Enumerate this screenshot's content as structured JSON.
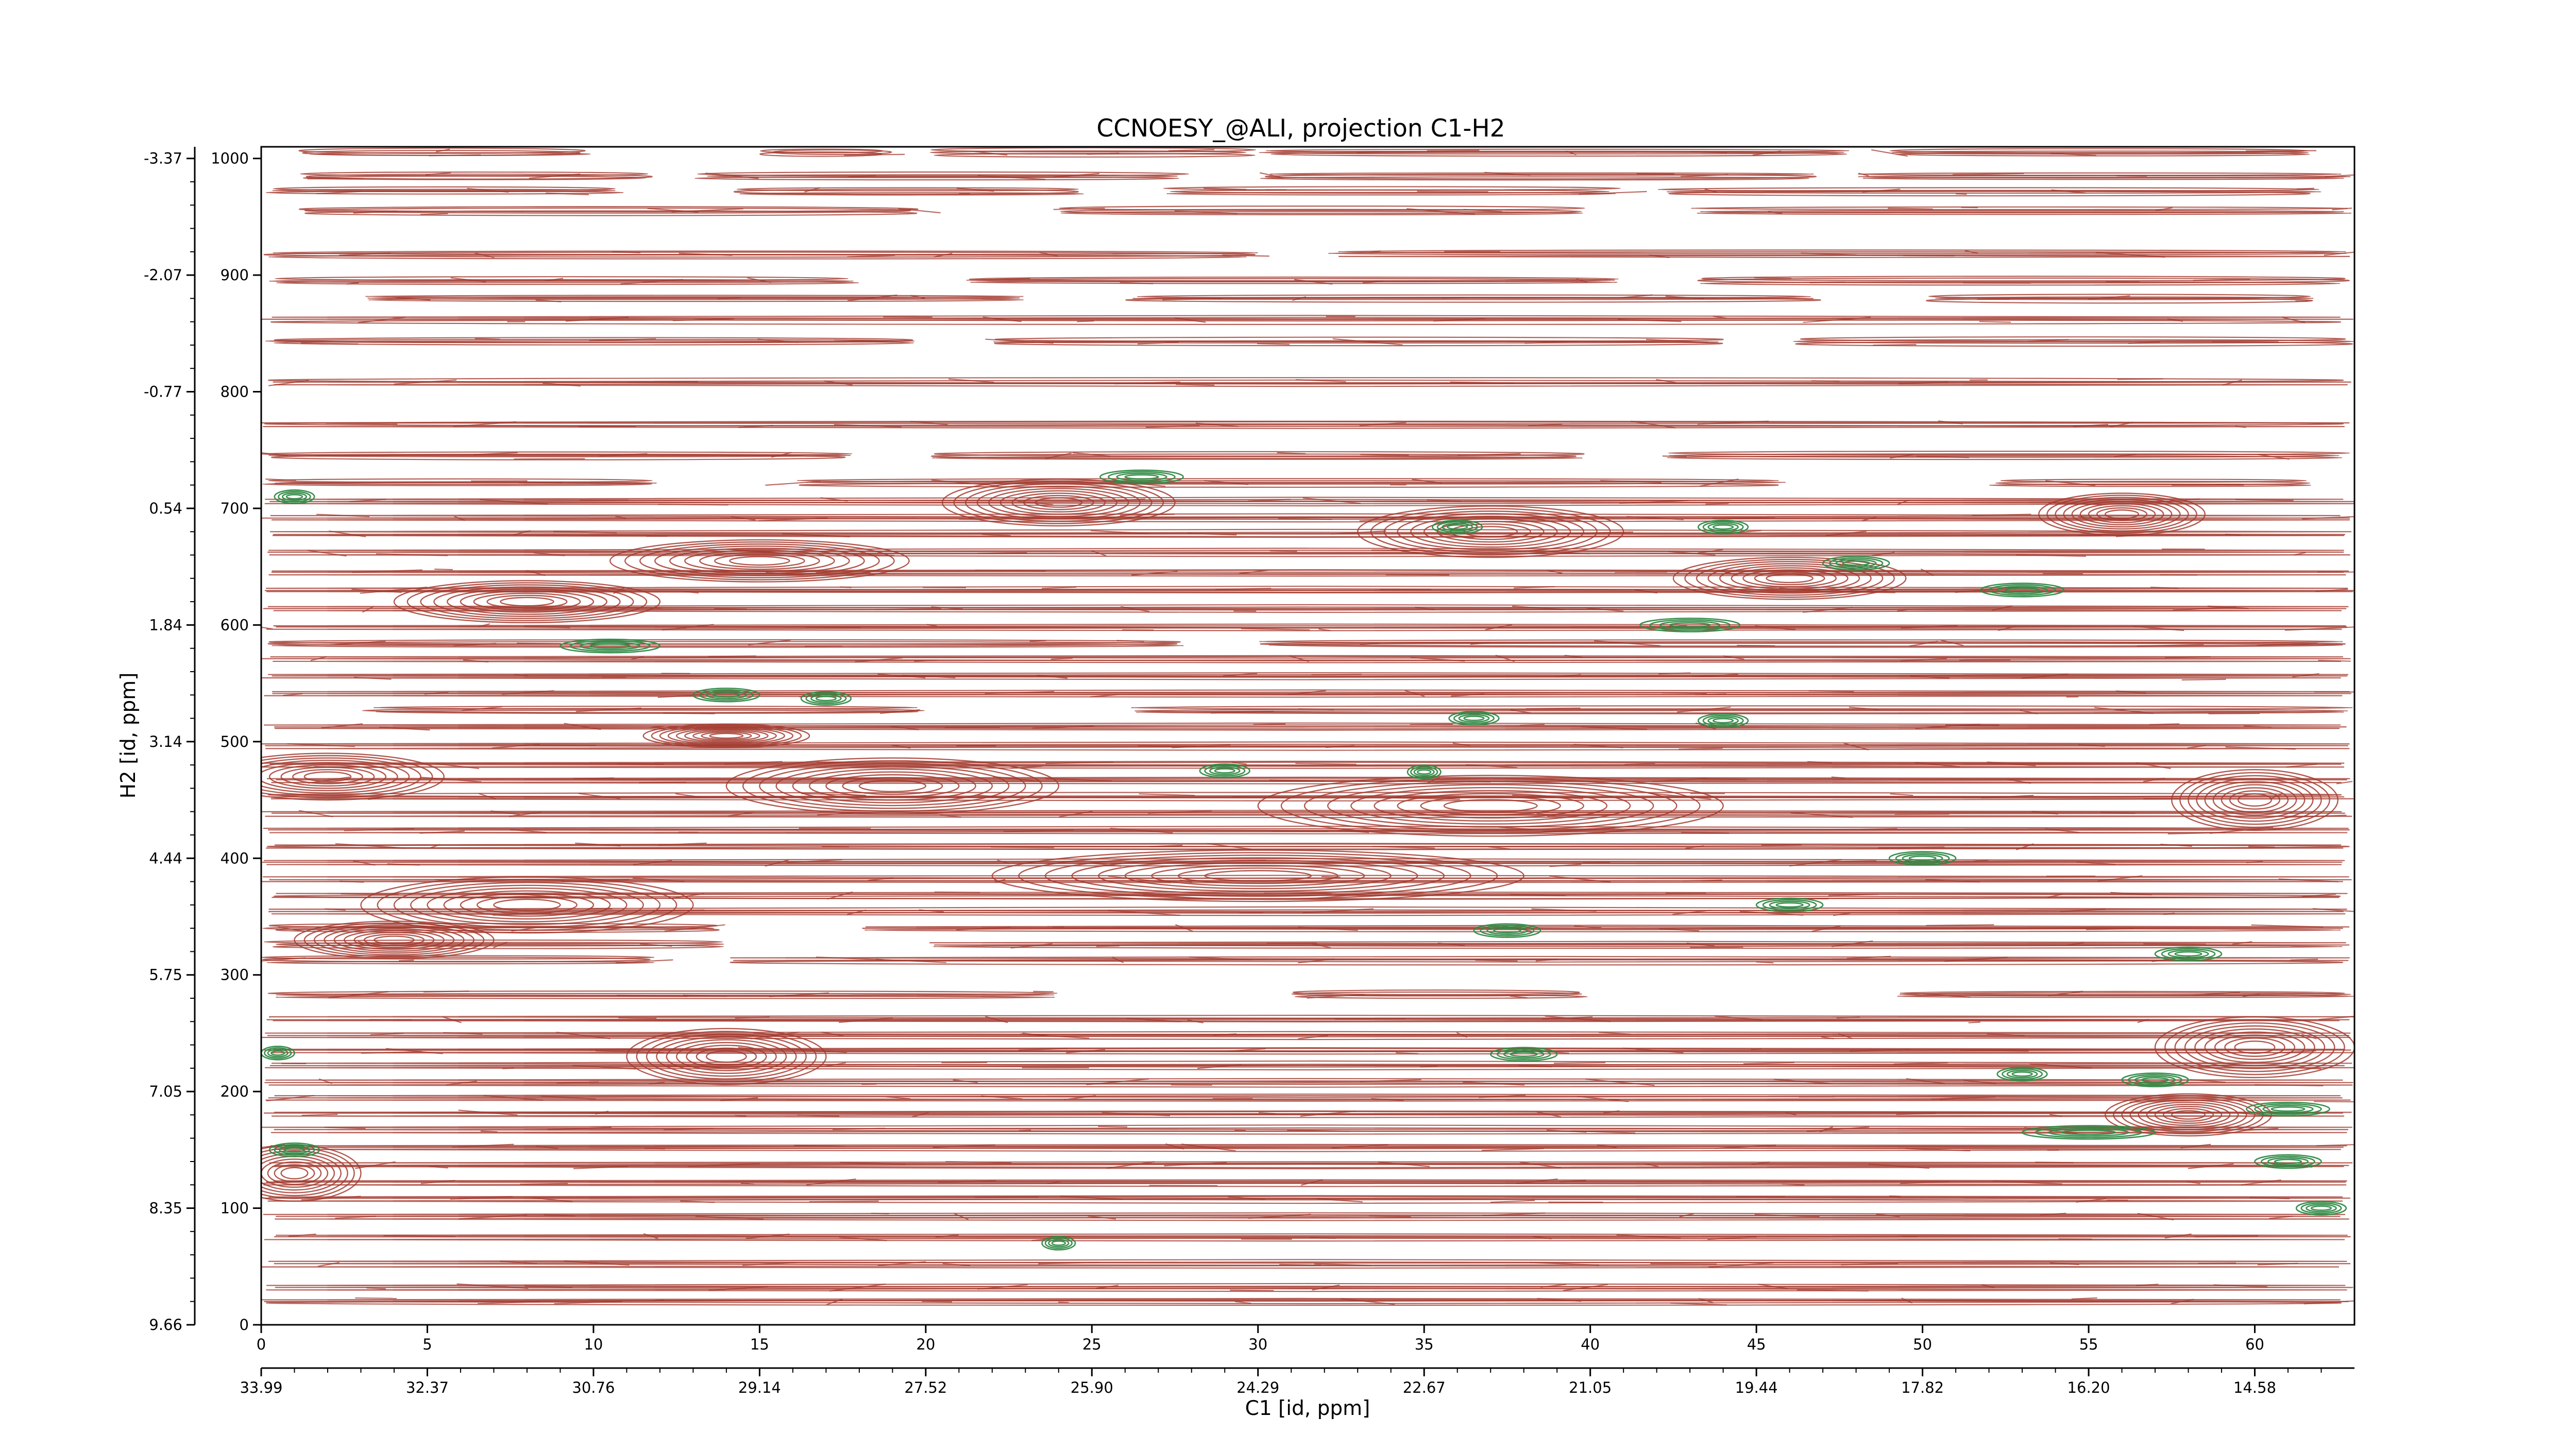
{
  "chart_data": {
    "type": "contour",
    "title": "CCNOESY_@ALI, projection C1-H2",
    "xlabel": "C1 [id, ppm]",
    "ylabel": "H2 [id, ppm]",
    "xlim": [
      0,
      63
    ],
    "ylim": [
      0,
      1010
    ],
    "x_ticks": [
      0,
      5,
      10,
      15,
      20,
      25,
      30,
      35,
      40,
      45,
      50,
      55,
      60
    ],
    "x_tick_labels": [
      "0",
      "5",
      "10",
      "15",
      "20",
      "25",
      "30",
      "35",
      "40",
      "45",
      "50",
      "55",
      "60"
    ],
    "x_ppm_tick_labels": [
      "33.99",
      "32.37",
      "30.76",
      "29.14",
      "27.52",
      "25.90",
      "24.29",
      "22.67",
      "21.05",
      "19.44",
      "17.82",
      "16.20",
      "14.58"
    ],
    "y_ticks": [
      0,
      100,
      200,
      300,
      400,
      500,
      600,
      700,
      800,
      900,
      1000
    ],
    "y_tick_labels": [
      "0",
      "100",
      "200",
      "300",
      "400",
      "500",
      "600",
      "700",
      "800",
      "900",
      "1000"
    ],
    "y_ppm_tick_labels": [
      "9.66",
      "8.35",
      "7.05",
      "5.75",
      "4.44",
      "3.14",
      "1.84",
      "0.54",
      "-0.77",
      "-2.07",
      "-3.37"
    ],
    "grid": false,
    "colors": {
      "positive": "#a33a2e",
      "negative": "#2f8a45"
    },
    "bands": [
      {
        "y": 1005,
        "segs": [
          [
            1,
            10
          ],
          [
            15,
            19
          ],
          [
            20,
            30
          ],
          [
            30,
            48
          ],
          [
            49,
            62
          ]
        ]
      },
      {
        "y": 985,
        "segs": [
          [
            1,
            12
          ],
          [
            13,
            28
          ],
          [
            30,
            47
          ],
          [
            48,
            63
          ]
        ]
      },
      {
        "y": 972,
        "segs": [
          [
            0,
            11
          ],
          [
            14,
            25
          ],
          [
            27,
            41
          ],
          [
            42,
            62
          ]
        ]
      },
      {
        "y": 955,
        "segs": [
          [
            1,
            20
          ],
          [
            24,
            40
          ],
          [
            43,
            63
          ]
        ]
      },
      {
        "y": 918,
        "segs": [
          [
            0,
            30
          ],
          [
            32,
            63
          ]
        ]
      },
      {
        "y": 895,
        "segs": [
          [
            0,
            18
          ],
          [
            21,
            41
          ],
          [
            43,
            63
          ]
        ]
      },
      {
        "y": 880,
        "segs": [
          [
            3,
            23
          ],
          [
            26,
            47
          ],
          [
            50,
            62
          ]
        ]
      },
      {
        "y": 862,
        "segs": [
          [
            0,
            63
          ]
        ]
      },
      {
        "y": 843,
        "segs": [
          [
            0,
            20
          ],
          [
            22,
            44
          ],
          [
            46,
            63
          ]
        ]
      },
      {
        "y": 808,
        "segs": [
          [
            0,
            63
          ]
        ]
      },
      {
        "y": 772,
        "segs": [
          [
            0,
            63
          ]
        ]
      },
      {
        "y": 745,
        "segs": [
          [
            0,
            18
          ],
          [
            20,
            40
          ],
          [
            42,
            63
          ]
        ]
      },
      {
        "y": 722,
        "segs": [
          [
            0,
            12
          ],
          [
            16,
            46
          ],
          [
            52,
            62
          ]
        ]
      },
      {
        "y": 706,
        "segs": [
          [
            0,
            63
          ]
        ]
      },
      {
        "y": 692,
        "segs": [
          [
            0,
            63
          ]
        ]
      },
      {
        "y": 678,
        "segs": [
          [
            0,
            63
          ]
        ]
      },
      {
        "y": 662,
        "segs": [
          [
            0,
            63
          ]
        ]
      },
      {
        "y": 645,
        "segs": [
          [
            0,
            63
          ]
        ]
      },
      {
        "y": 630,
        "segs": [
          [
            0,
            63
          ]
        ]
      },
      {
        "y": 614,
        "segs": [
          [
            0,
            63
          ]
        ]
      },
      {
        "y": 598,
        "segs": [
          [
            0,
            63
          ]
        ]
      },
      {
        "y": 584,
        "segs": [
          [
            0,
            28
          ],
          [
            30,
            63
          ]
        ]
      },
      {
        "y": 571,
        "segs": [
          [
            0,
            63
          ]
        ]
      },
      {
        "y": 556,
        "segs": [
          [
            0,
            63
          ]
        ]
      },
      {
        "y": 541,
        "segs": [
          [
            0,
            63
          ]
        ]
      },
      {
        "y": 527,
        "segs": [
          [
            3,
            20
          ],
          [
            26,
            63
          ]
        ]
      },
      {
        "y": 513,
        "segs": [
          [
            0,
            63
          ]
        ]
      },
      {
        "y": 496,
        "segs": [
          [
            0,
            63
          ]
        ]
      },
      {
        "y": 480,
        "segs": [
          [
            0,
            63
          ]
        ]
      },
      {
        "y": 467,
        "segs": [
          [
            0,
            63
          ]
        ]
      },
      {
        "y": 453,
        "segs": [
          [
            0,
            63
          ]
        ]
      },
      {
        "y": 438,
        "segs": [
          [
            0,
            63
          ]
        ]
      },
      {
        "y": 424,
        "segs": [
          [
            0,
            63
          ]
        ]
      },
      {
        "y": 410,
        "segs": [
          [
            0,
            63
          ]
        ]
      },
      {
        "y": 396,
        "segs": [
          [
            0,
            63
          ]
        ]
      },
      {
        "y": 382,
        "segs": [
          [
            0,
            63
          ]
        ]
      },
      {
        "y": 368,
        "segs": [
          [
            0,
            63
          ]
        ]
      },
      {
        "y": 354,
        "segs": [
          [
            0,
            63
          ]
        ]
      },
      {
        "y": 340,
        "segs": [
          [
            0,
            14
          ],
          [
            18,
            63
          ]
        ]
      },
      {
        "y": 326,
        "segs": [
          [
            0,
            14
          ],
          [
            20,
            63
          ]
        ]
      },
      {
        "y": 313,
        "segs": [
          [
            0,
            12
          ],
          [
            14,
            63
          ]
        ]
      },
      {
        "y": 283,
        "segs": [
          [
            0,
            24
          ],
          [
            31,
            40
          ],
          [
            49,
            63
          ]
        ]
      },
      {
        "y": 262,
        "segs": [
          [
            0,
            63
          ]
        ]
      },
      {
        "y": 248,
        "segs": [
          [
            0,
            63
          ]
        ]
      },
      {
        "y": 235,
        "segs": [
          [
            0,
            63
          ]
        ]
      },
      {
        "y": 222,
        "segs": [
          [
            0,
            63
          ]
        ]
      },
      {
        "y": 208,
        "segs": [
          [
            0,
            63
          ]
        ]
      },
      {
        "y": 194,
        "segs": [
          [
            0,
            63
          ]
        ]
      },
      {
        "y": 181,
        "segs": [
          [
            0,
            63
          ]
        ]
      },
      {
        "y": 167,
        "segs": [
          [
            0,
            63
          ]
        ]
      },
      {
        "y": 152,
        "segs": [
          [
            0,
            63
          ]
        ]
      },
      {
        "y": 137,
        "segs": [
          [
            0,
            63
          ]
        ]
      },
      {
        "y": 122,
        "segs": [
          [
            0,
            63
          ]
        ]
      },
      {
        "y": 108,
        "segs": [
          [
            0,
            63
          ]
        ]
      },
      {
        "y": 93,
        "segs": [
          [
            0,
            63
          ]
        ]
      },
      {
        "y": 75,
        "segs": [
          [
            0,
            63
          ]
        ]
      },
      {
        "y": 52,
        "segs": [
          [
            0,
            63
          ]
        ]
      },
      {
        "y": 32,
        "segs": [
          [
            0,
            63
          ]
        ]
      },
      {
        "y": 20,
        "segs": [
          [
            0,
            63
          ]
        ]
      }
    ],
    "blobs": [
      {
        "x": 24,
        "y": 705,
        "w": 7,
        "h": 20
      },
      {
        "x": 15,
        "y": 655,
        "w": 9,
        "h": 18
      },
      {
        "x": 37,
        "y": 680,
        "w": 8,
        "h": 22
      },
      {
        "x": 56,
        "y": 695,
        "w": 5,
        "h": 18
      },
      {
        "x": 8,
        "y": 620,
        "w": 8,
        "h": 18
      },
      {
        "x": 46,
        "y": 640,
        "w": 7,
        "h": 18
      },
      {
        "x": 14,
        "y": 505,
        "w": 5,
        "h": 10
      },
      {
        "x": 2,
        "y": 470,
        "w": 7,
        "h": 20
      },
      {
        "x": 19,
        "y": 462,
        "w": 10,
        "h": 24
      },
      {
        "x": 37,
        "y": 445,
        "w": 14,
        "h": 26
      },
      {
        "x": 60,
        "y": 450,
        "w": 5,
        "h": 26
      },
      {
        "x": 8,
        "y": 360,
        "w": 10,
        "h": 24
      },
      {
        "x": 30,
        "y": 385,
        "w": 16,
        "h": 22
      },
      {
        "x": 4,
        "y": 330,
        "w": 6,
        "h": 16
      },
      {
        "x": 14,
        "y": 230,
        "w": 6,
        "h": 24
      },
      {
        "x": 60,
        "y": 238,
        "w": 6,
        "h": 26
      },
      {
        "x": 1,
        "y": 130,
        "w": 4,
        "h": 24
      },
      {
        "x": 58,
        "y": 180,
        "w": 5,
        "h": 18
      }
    ],
    "green": [
      {
        "x": 1,
        "y": 710,
        "w": 1.2
      },
      {
        "x": 26.5,
        "y": 727,
        "w": 2.5
      },
      {
        "x": 36,
        "y": 684,
        "w": 1.5
      },
      {
        "x": 44,
        "y": 684,
        "w": 1.5
      },
      {
        "x": 48,
        "y": 653,
        "w": 2
      },
      {
        "x": 53,
        "y": 630,
        "w": 2.5
      },
      {
        "x": 10.5,
        "y": 582,
        "w": 3
      },
      {
        "x": 43,
        "y": 600,
        "w": 3
      },
      {
        "x": 14,
        "y": 540,
        "w": 2
      },
      {
        "x": 17,
        "y": 537,
        "w": 1.5
      },
      {
        "x": 36.5,
        "y": 520,
        "w": 1.5
      },
      {
        "x": 44,
        "y": 518,
        "w": 1.5
      },
      {
        "x": 29,
        "y": 475,
        "w": 1.5
      },
      {
        "x": 35,
        "y": 474,
        "w": 1
      },
      {
        "x": 50,
        "y": 400,
        "w": 2
      },
      {
        "x": 46,
        "y": 360,
        "w": 2
      },
      {
        "x": 37.5,
        "y": 338,
        "w": 2
      },
      {
        "x": 58,
        "y": 318,
        "w": 2
      },
      {
        "x": 0.5,
        "y": 233,
        "w": 1
      },
      {
        "x": 38,
        "y": 232,
        "w": 2
      },
      {
        "x": 53,
        "y": 215,
        "w": 1.5
      },
      {
        "x": 57,
        "y": 210,
        "w": 2
      },
      {
        "x": 61,
        "y": 185,
        "w": 2.5
      },
      {
        "x": 55,
        "y": 165,
        "w": 4
      },
      {
        "x": 61,
        "y": 140,
        "w": 2
      },
      {
        "x": 62,
        "y": 100,
        "w": 1.5
      },
      {
        "x": 1,
        "y": 150,
        "w": 1.5
      },
      {
        "x": 24,
        "y": 70,
        "w": 1
      }
    ]
  }
}
